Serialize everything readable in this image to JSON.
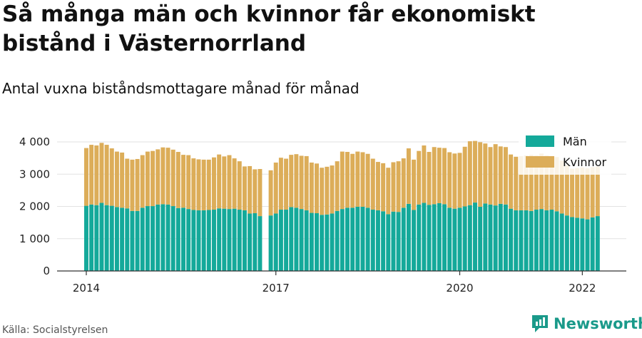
{
  "title": "Så många män och kvinnor får ekonomiskt bistånd i Västernorrland",
  "subtitle": "Antal vuxna biståndsmottagare månad för månad",
  "source": "Källa: Socialstyrelsen",
  "brand": {
    "name": "Newsworthy",
    "icon": "newsworthy-logo-icon"
  },
  "colors": {
    "men": "#14a99a",
    "women": "#dcad59",
    "axis": "#333333",
    "grid": "#e2e2e2"
  },
  "chart_data": {
    "type": "bar",
    "stacked": true,
    "x_start": "2014-01",
    "x_ticks": [
      "2014",
      "2017",
      "2020",
      "2022"
    ],
    "y_ticks": [
      "0",
      "1 000",
      "2 000",
      "3 000",
      "4 000"
    ],
    "ylim": [
      0,
      4300
    ],
    "grid": true,
    "legend": "top-right",
    "gaps_after_index": [
      34
    ],
    "series": [
      {
        "name": "Män",
        "values": [
          2020,
          2060,
          2040,
          2110,
          2040,
          2020,
          1980,
          1960,
          1940,
          1860,
          1860,
          1960,
          2010,
          2010,
          2060,
          2070,
          2060,
          2010,
          1950,
          1960,
          1920,
          1890,
          1880,
          1880,
          1890,
          1900,
          1940,
          1930,
          1920,
          1930,
          1900,
          1880,
          1780,
          1790,
          1700,
          1720,
          1780,
          1900,
          1900,
          1980,
          1960,
          1920,
          1880,
          1800,
          1790,
          1740,
          1750,
          1780,
          1860,
          1920,
          1960,
          1960,
          1990,
          1990,
          1960,
          1900,
          1880,
          1850,
          1760,
          1840,
          1830,
          1960,
          2080,
          1890,
          2060,
          2110,
          2050,
          2070,
          2100,
          2070,
          1960,
          1930,
          1960,
          2000,
          2040,
          2120,
          1990,
          2090,
          2060,
          2030,
          2080,
          2060,
          1930,
          1880,
          1880,
          1880,
          1860,
          1900,
          1920,
          1880,
          1900,
          1850,
          1780,
          1720,
          1670,
          1650,
          1630,
          1600,
          1660,
          1700
        ]
      },
      {
        "name": "Kvinnor",
        "values": [
          1790,
          1850,
          1850,
          1860,
          1870,
          1780,
          1720,
          1710,
          1540,
          1590,
          1610,
          1630,
          1690,
          1710,
          1710,
          1760,
          1760,
          1750,
          1740,
          1640,
          1670,
          1600,
          1580,
          1570,
          1560,
          1620,
          1670,
          1620,
          1670,
          1560,
          1500,
          1360,
          1470,
          1360,
          1460,
          1400,
          1580,
          1610,
          1580,
          1620,
          1660,
          1650,
          1680,
          1560,
          1540,
          1460,
          1480,
          1490,
          1540,
          1780,
          1730,
          1670,
          1710,
          1690,
          1670,
          1580,
          1500,
          1490,
          1440,
          1530,
          1570,
          1530,
          1720,
          1560,
          1660,
          1780,
          1640,
          1770,
          1720,
          1740,
          1720,
          1710,
          1700,
          1850,
          1980,
          1910,
          2000,
          1860,
          1780,
          1900,
          1780,
          1780,
          1680,
          1660,
          1680,
          1700,
          1740,
          1680,
          1720,
          1700,
          1640,
          1680,
          1640,
          1560,
          1500,
          1540,
          1580,
          1580,
          1560,
          1540
        ]
      }
    ]
  }
}
